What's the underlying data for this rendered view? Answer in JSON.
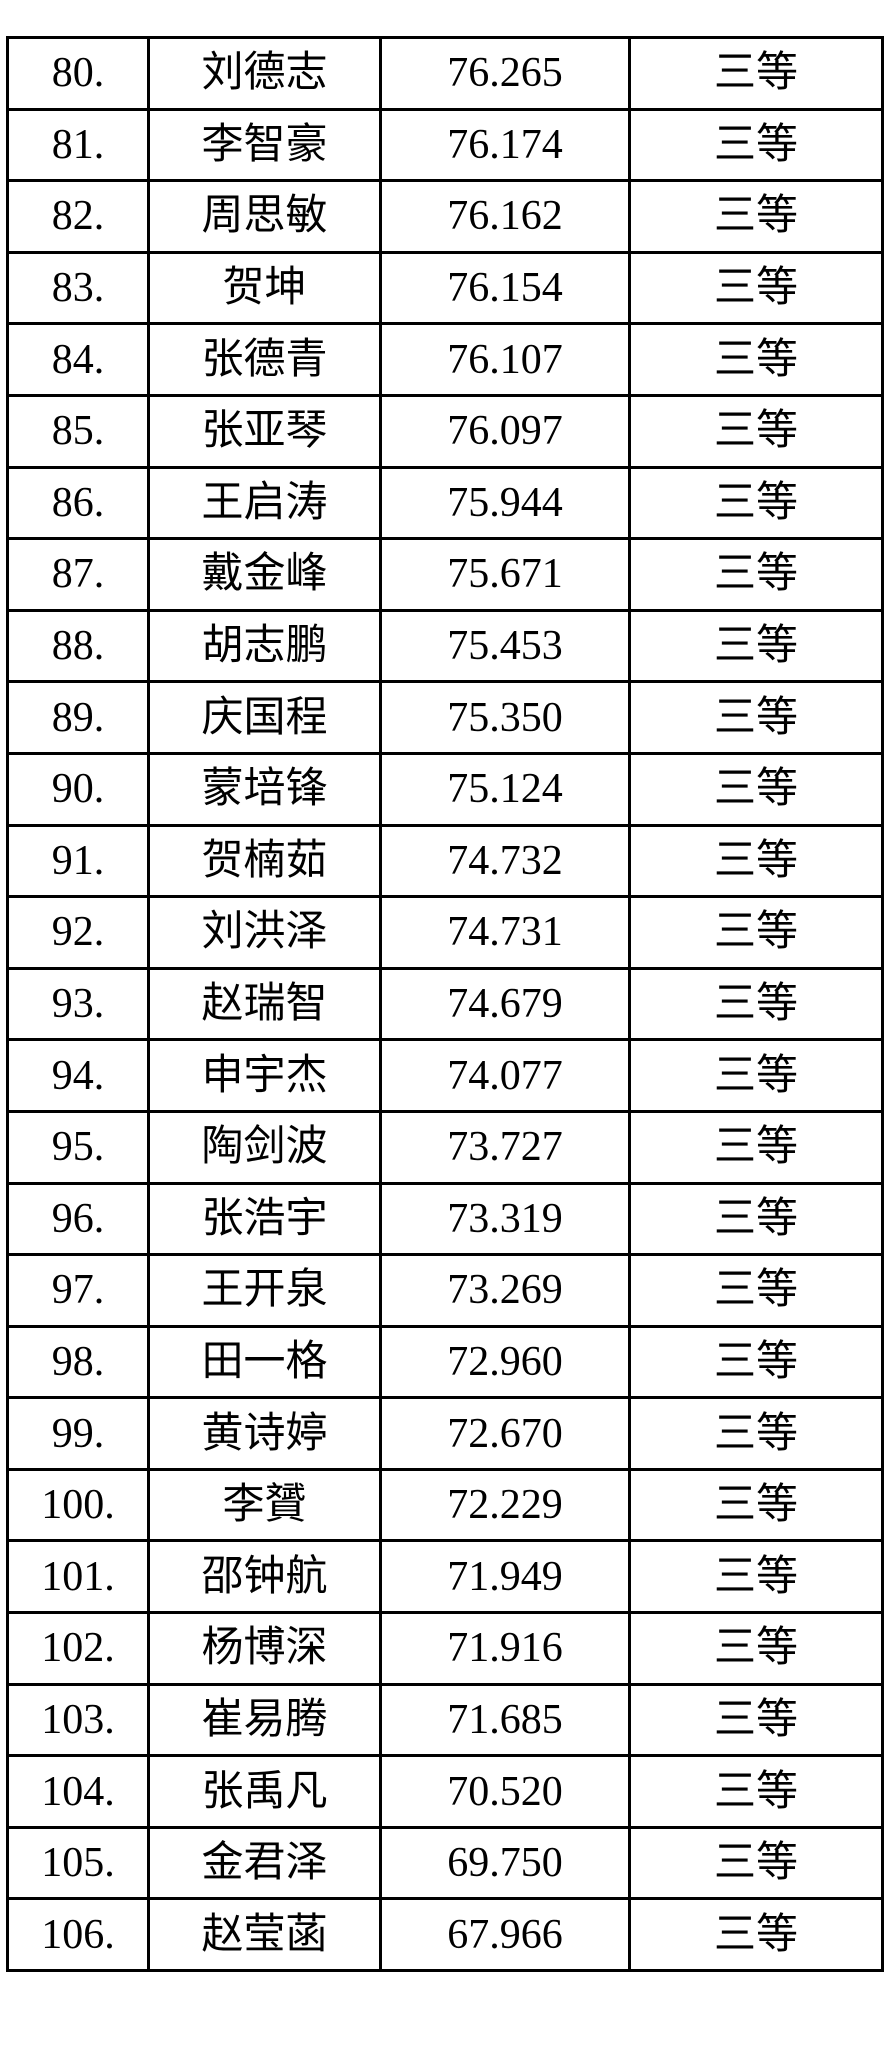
{
  "table": {
    "grade_label": "三等",
    "rows": [
      {
        "rank": "80.",
        "name": "刘德志",
        "score": "76.265",
        "grade": "三等"
      },
      {
        "rank": "81.",
        "name": "李智豪",
        "score": "76.174",
        "grade": "三等"
      },
      {
        "rank": "82.",
        "name": "周思敏",
        "score": "76.162",
        "grade": "三等"
      },
      {
        "rank": "83.",
        "name": "贺坤",
        "score": "76.154",
        "grade": "三等"
      },
      {
        "rank": "84.",
        "name": "张德青",
        "score": "76.107",
        "grade": "三等"
      },
      {
        "rank": "85.",
        "name": "张亚琴",
        "score": "76.097",
        "grade": "三等"
      },
      {
        "rank": "86.",
        "name": "王启涛",
        "score": "75.944",
        "grade": "三等"
      },
      {
        "rank": "87.",
        "name": "戴金峰",
        "score": "75.671",
        "grade": "三等"
      },
      {
        "rank": "88.",
        "name": "胡志鹏",
        "score": "75.453",
        "grade": "三等"
      },
      {
        "rank": "89.",
        "name": "庆国程",
        "score": "75.350",
        "grade": "三等"
      },
      {
        "rank": "90.",
        "name": "蒙培锋",
        "score": "75.124",
        "grade": "三等"
      },
      {
        "rank": "91.",
        "name": "贺楠茹",
        "score": "74.732",
        "grade": "三等"
      },
      {
        "rank": "92.",
        "name": "刘洪泽",
        "score": "74.731",
        "grade": "三等"
      },
      {
        "rank": "93.",
        "name": "赵瑞智",
        "score": "74.679",
        "grade": "三等"
      },
      {
        "rank": "94.",
        "name": "申宇杰",
        "score": "74.077",
        "grade": "三等"
      },
      {
        "rank": "95.",
        "name": "陶剑波",
        "score": "73.727",
        "grade": "三等"
      },
      {
        "rank": "96.",
        "name": "张浩宇",
        "score": "73.319",
        "grade": "三等"
      },
      {
        "rank": "97.",
        "name": "王开泉",
        "score": "73.269",
        "grade": "三等"
      },
      {
        "rank": "98.",
        "name": "田一格",
        "score": "72.960",
        "grade": "三等"
      },
      {
        "rank": "99.",
        "name": "黄诗婷",
        "score": "72.670",
        "grade": "三等"
      },
      {
        "rank": "100.",
        "name": "李贇",
        "score": "72.229",
        "grade": "三等"
      },
      {
        "rank": "101.",
        "name": "邵钟航",
        "score": "71.949",
        "grade": "三等"
      },
      {
        "rank": "102.",
        "name": "杨博深",
        "score": "71.916",
        "grade": "三等"
      },
      {
        "rank": "103.",
        "name": "崔易腾",
        "score": "71.685",
        "grade": "三等"
      },
      {
        "rank": "104.",
        "name": "张禹凡",
        "score": "70.520",
        "grade": "三等"
      },
      {
        "rank": "105.",
        "name": "金君泽",
        "score": "69.750",
        "grade": "三等"
      },
      {
        "rank": "106.",
        "name": "赵莹菡",
        "score": "67.966",
        "grade": "三等"
      }
    ]
  }
}
